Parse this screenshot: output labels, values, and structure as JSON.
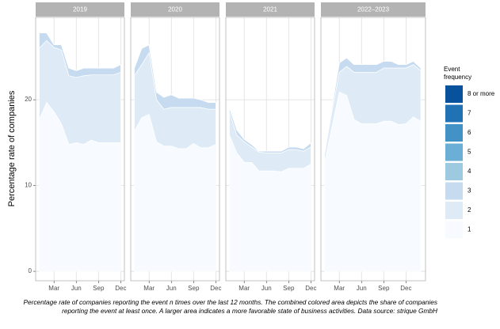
{
  "ylabel": "Percentage rate of companies",
  "legend_title": "Event frequency",
  "caption": "Percentage rate of companies reporting the event n times over the last 12 months. The combined colored area depicts the share of companies reporting the event at least once. A larger area indicates a more favorable state of business activities. Data source: strique GmbH",
  "chart_data": [
    {
      "type": "area",
      "title": "2019",
      "categories": [
        null,
        null,
        "Mar",
        null,
        null,
        "Jun",
        null,
        null,
        "Sep",
        null,
        null,
        "Dec"
      ],
      "ylim": [
        -1.1,
        29.6
      ],
      "yticks": [
        0,
        10,
        20
      ],
      "grid": true,
      "series": [
        {
          "name": "1",
          "color": "#f7fbff",
          "values": [
            17.7,
            19.7,
            18.6,
            17.2,
            14.8,
            15.0,
            14.8,
            15.3,
            15.0,
            15.0,
            15.0,
            15.0
          ]
        },
        {
          "name": "2",
          "color": "#deebf7",
          "values": [
            8.3,
            7.2,
            7.5,
            8.6,
            8.0,
            7.6,
            8.0,
            7.6,
            7.9,
            7.9,
            7.9,
            8.2
          ]
        },
        {
          "name": "3",
          "color": "#c6dbef",
          "values": [
            1.8,
            0.9,
            0.3,
            0.6,
            0.9,
            0.8,
            0.9,
            0.8,
            0.8,
            0.8,
            0.8,
            0.9
          ]
        },
        {
          "name": "4",
          "color": "#9ecae1",
          "values": [
            0,
            0,
            0,
            0,
            0,
            0,
            0,
            0,
            0,
            0,
            0,
            0
          ]
        },
        {
          "name": "5",
          "color": "#6baed6",
          "values": [
            0,
            0,
            0,
            0,
            0,
            0,
            0,
            0,
            0,
            0,
            0,
            0
          ]
        },
        {
          "name": "6",
          "color": "#4292c6",
          "values": [
            0,
            0,
            0,
            0,
            0,
            0,
            0,
            0,
            0,
            0,
            0,
            0
          ]
        },
        {
          "name": "7",
          "color": "#2171b5",
          "values": [
            0,
            0,
            0,
            0,
            0,
            0,
            0,
            0,
            0,
            0,
            0,
            0
          ]
        },
        {
          "name": "8 or more",
          "color": "#08519c",
          "values": [
            0,
            0,
            0,
            0,
            0,
            0,
            0,
            0,
            0,
            0,
            0,
            0
          ]
        }
      ]
    },
    {
      "type": "area",
      "title": "2020",
      "categories": [
        null,
        null,
        "Mar",
        null,
        null,
        "Jun",
        null,
        null,
        "Sep",
        null,
        null,
        "Dec"
      ],
      "ylim": [
        -1.1,
        29.6
      ],
      "yticks": [
        0,
        10,
        20
      ],
      "grid": true,
      "series": [
        {
          "name": "1",
          "color": "#f7fbff",
          "values": [
            16.3,
            17.9,
            18.3,
            15.1,
            14.6,
            14.6,
            14.3,
            14.3,
            14.9,
            14.4,
            14.4,
            14.8
          ]
        },
        {
          "name": "2",
          "color": "#deebf7",
          "values": [
            6.5,
            6.2,
            7.2,
            4.9,
            4.3,
            4.5,
            4.8,
            4.8,
            4.2,
            4.7,
            4.5,
            4.1
          ]
        },
        {
          "name": "3",
          "color": "#c6dbef",
          "values": [
            0.9,
            1.9,
            0.9,
            0.9,
            1.4,
            1.5,
            1.1,
            1.1,
            1.1,
            0.9,
            0.8,
            0.8
          ]
        },
        {
          "name": "4",
          "color": "#9ecae1",
          "values": [
            0,
            0,
            0,
            0,
            0,
            0,
            0,
            0,
            0,
            0,
            0,
            0
          ]
        },
        {
          "name": "5",
          "color": "#6baed6",
          "values": [
            0,
            0,
            0,
            0,
            0,
            0,
            0,
            0,
            0,
            0,
            0,
            0
          ]
        },
        {
          "name": "6",
          "color": "#4292c6",
          "values": [
            0,
            0,
            0,
            0,
            0,
            0,
            0,
            0,
            0,
            0,
            0,
            0
          ]
        },
        {
          "name": "7",
          "color": "#2171b5",
          "values": [
            0,
            0,
            0,
            0,
            0,
            0,
            0,
            0,
            0,
            0,
            0,
            0
          ]
        },
        {
          "name": "8 or more",
          "color": "#08519c",
          "values": [
            0,
            0,
            0,
            0,
            0,
            0,
            0,
            0,
            0,
            0,
            0,
            0
          ]
        }
      ]
    },
    {
      "type": "area",
      "title": "2021",
      "categories": [
        null,
        null,
        "Mar",
        null,
        null,
        "Jun",
        null,
        null,
        "Sep",
        null,
        null,
        "Dec"
      ],
      "ylim": [
        -1.1,
        29.6
      ],
      "yticks": [
        0,
        10,
        20
      ],
      "grid": true,
      "series": [
        {
          "name": "1",
          "color": "#f7fbff",
          "values": [
            15.9,
            13.8,
            12.7,
            12.7,
            11.7,
            11.7,
            11.7,
            11.6,
            12.0,
            12.0,
            12.0,
            12.5
          ]
        },
        {
          "name": "2",
          "color": "#deebf7",
          "values": [
            2.7,
            2.1,
            2.4,
            1.8,
            2.2,
            2.1,
            2.1,
            2.2,
            2.2,
            2.2,
            2.0,
            2.0
          ]
        },
        {
          "name": "3",
          "color": "#c6dbef",
          "values": [
            0.5,
            0.6,
            0.3,
            0.3,
            0.1,
            0.2,
            0.2,
            0.2,
            0.3,
            0.3,
            0.3,
            0.5
          ]
        },
        {
          "name": "4",
          "color": "#9ecae1",
          "values": [
            0,
            0,
            0,
            0,
            0,
            0,
            0,
            0,
            0,
            0,
            0,
            0
          ]
        },
        {
          "name": "5",
          "color": "#6baed6",
          "values": [
            0,
            0,
            0,
            0,
            0,
            0,
            0,
            0,
            0,
            0,
            0,
            0
          ]
        },
        {
          "name": "6",
          "color": "#4292c6",
          "values": [
            0,
            0,
            0,
            0,
            0,
            0,
            0,
            0,
            0,
            0,
            0,
            0
          ]
        },
        {
          "name": "7",
          "color": "#2171b5",
          "values": [
            0,
            0,
            0,
            0,
            0,
            0,
            0,
            0,
            0,
            0,
            0,
            0
          ]
        },
        {
          "name": "8 or more",
          "color": "#08519c",
          "values": [
            0,
            0,
            0,
            0,
            0,
            0,
            0,
            0,
            0,
            0,
            0,
            0
          ]
        }
      ]
    },
    {
      "type": "area",
      "title": "2022–2023",
      "categories": [
        null,
        null,
        "Mar",
        null,
        null,
        "Jun",
        null,
        null,
        "Sep",
        null,
        null,
        "Dec",
        null,
        null
      ],
      "ylim": [
        -1.1,
        29.6
      ],
      "yticks": [
        0,
        10,
        20
      ],
      "grid": true,
      "series": [
        {
          "name": "1",
          "color": "#f7fbff",
          "values": [
            12.7,
            16.8,
            20.9,
            20.5,
            17.7,
            17.2,
            17.2,
            17.2,
            17.5,
            17.5,
            17.1,
            17.2,
            18.0,
            17.5
          ]
        },
        {
          "name": "2",
          "color": "#deebf7",
          "values": [
            0.9,
            1.8,
            2.3,
            3.4,
            5.5,
            6.0,
            6.0,
            6.0,
            6.2,
            6.2,
            6.6,
            6.5,
            6.1,
            5.9
          ]
        },
        {
          "name": "3",
          "color": "#c6dbef",
          "values": [
            0.4,
            0.5,
            1.1,
            1.0,
            0.9,
            0.9,
            0.9,
            0.9,
            0.8,
            0.8,
            0.4,
            0.4,
            0.4,
            0.3
          ]
        },
        {
          "name": "4",
          "color": "#9ecae1",
          "values": [
            0,
            0,
            0,
            0,
            0,
            0,
            0,
            0,
            0,
            0,
            0,
            0,
            0,
            0
          ]
        },
        {
          "name": "5",
          "color": "#6baed6",
          "values": [
            0,
            0,
            0,
            0,
            0,
            0,
            0,
            0,
            0,
            0,
            0,
            0,
            0,
            0
          ]
        },
        {
          "name": "6",
          "color": "#4292c6",
          "values": [
            0,
            0,
            0,
            0,
            0,
            0,
            0,
            0,
            0,
            0,
            0,
            0,
            0,
            0
          ]
        },
        {
          "name": "7",
          "color": "#2171b5",
          "values": [
            0,
            0,
            0,
            0,
            0,
            0,
            0,
            0,
            0,
            0,
            0,
            0,
            0,
            0
          ]
        },
        {
          "name": "8 or more",
          "color": "#08519c",
          "values": [
            0,
            0,
            0,
            0,
            0,
            0,
            0,
            0,
            0,
            0,
            0,
            0,
            0,
            0
          ]
        }
      ]
    }
  ]
}
